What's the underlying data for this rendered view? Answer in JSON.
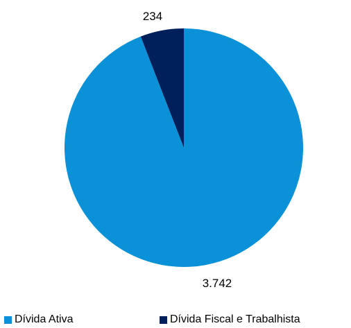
{
  "chart_data": {
    "type": "pie",
    "title": "",
    "start": "top",
    "direction": "clockwise",
    "legend_position": "bottom",
    "series": [
      {
        "name": "Dívida Ativa",
        "value": 3742,
        "label": "3.742",
        "color": "#0a91d7"
      },
      {
        "name": "Dívida Fiscal e Trabalhista",
        "value": 234,
        "label": "234",
        "color": "#00205b"
      }
    ]
  }
}
